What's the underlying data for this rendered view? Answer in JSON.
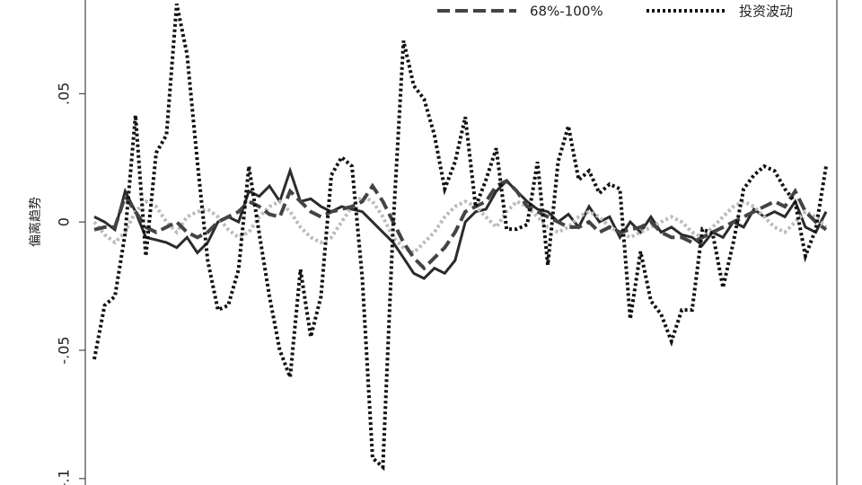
{
  "chart_data": {
    "type": "line",
    "ylabel": "偏离趋势",
    "ylim": [
      -0.1025,
      0.0865
    ],
    "yticks": [
      {
        "value": -0.1,
        "label": "-.1"
      },
      {
        "value": -0.05,
        "label": "-.05"
      },
      0,
      {
        "value": 0.05,
        "label": ".05"
      }
    ],
    "legend": "top",
    "series": [
      {
        "color": "#2b2b2b",
        "dash": "solid",
        "values": [
          0.002,
          0.0,
          -0.003,
          0.012,
          0.004,
          -0.006,
          -0.007,
          -0.008,
          -0.01,
          -0.006,
          -0.012,
          -0.008,
          0.0,
          0.002,
          0.0,
          0.012,
          0.01,
          0.014,
          0.008,
          0.02,
          0.008,
          0.009,
          0.006,
          0.004,
          0.006,
          0.005,
          0.004,
          0.0,
          -0.004,
          -0.008,
          -0.014,
          -0.02,
          -0.022,
          -0.018,
          -0.02,
          -0.015,
          0.0,
          0.004,
          0.005,
          0.012,
          0.016,
          0.012,
          0.008,
          0.005,
          0.004,
          0.0,
          0.003,
          -0.002,
          0.006,
          0.0,
          0.002,
          -0.006,
          0.0,
          -0.004,
          0.002,
          -0.004,
          -0.002,
          -0.005,
          -0.006,
          -0.009,
          -0.004,
          -0.006,
          0.0,
          -0.002,
          0.005,
          0.002,
          0.004,
          0.002,
          0.008,
          -0.002,
          -0.004,
          0.004
        ]
      },
      {
        "color": "#bbbbbb",
        "dash": "dotted",
        "values": [
          0.0,
          -0.005,
          -0.008,
          -0.004,
          0.004,
          0.008,
          0.006,
          0.0,
          -0.004,
          0.002,
          0.004,
          0.005,
          0.002,
          -0.003,
          -0.006,
          -0.004,
          0.002,
          0.006,
          0.008,
          0.004,
          -0.002,
          -0.006,
          -0.008,
          -0.006,
          0.0,
          0.006,
          0.01,
          0.008,
          0.002,
          -0.006,
          -0.01,
          -0.012,
          -0.008,
          -0.004,
          0.002,
          0.006,
          0.008,
          0.006,
          0.002,
          -0.002,
          0.004,
          0.008,
          0.006,
          0.002,
          -0.002,
          -0.004,
          -0.002,
          0.002,
          0.004,
          0.002,
          -0.002,
          -0.004,
          -0.006,
          -0.004,
          -0.002,
          0.0,
          0.002,
          0.0,
          -0.004,
          -0.006,
          -0.002,
          0.002,
          0.006,
          0.008,
          0.006,
          0.002,
          -0.002,
          -0.004,
          0.0,
          0.004,
          0.002,
          -0.002
        ]
      },
      {
        "name": "68%-100%",
        "color": "#444444",
        "dash": "dashed",
        "values": [
          -0.003,
          -0.002,
          -0.002,
          0.01,
          0.004,
          -0.002,
          -0.004,
          -0.002,
          0.0,
          -0.004,
          -0.006,
          -0.004,
          0.0,
          0.002,
          0.004,
          0.008,
          0.006,
          0.003,
          0.002,
          0.012,
          0.008,
          0.004,
          0.002,
          0.004,
          0.005,
          0.006,
          0.008,
          0.014,
          0.008,
          0.0,
          -0.008,
          -0.014,
          -0.018,
          -0.014,
          -0.01,
          -0.004,
          0.004,
          0.006,
          0.008,
          0.014,
          0.016,
          0.012,
          0.006,
          0.004,
          0.002,
          0.0,
          -0.002,
          -0.002,
          0.0,
          -0.004,
          -0.002,
          -0.004,
          -0.003,
          -0.002,
          0.0,
          -0.004,
          -0.006,
          -0.006,
          -0.008,
          -0.006,
          -0.004,
          -0.002,
          0.0,
          0.002,
          0.004,
          0.006,
          0.008,
          0.006,
          0.012,
          0.004,
          0.0,
          -0.003
        ]
      },
      {
        "name": "投资波动",
        "color": "#111111",
        "dash": "dotted",
        "values": [
          -0.0535,
          -0.0325,
          -0.029,
          -0.0045,
          0.0416,
          -0.0133,
          0.0269,
          0.0339,
          0.085,
          0.0654,
          0.0234,
          -0.015,
          -0.0343,
          -0.0325,
          -0.0185,
          0.0217,
          -0.0045,
          -0.029,
          -0.05,
          -0.0605,
          -0.0185,
          -0.0448,
          -0.029,
          0.0182,
          0.0252,
          0.0217,
          -0.022,
          -0.092,
          -0.0955,
          -0.001,
          0.0706,
          0.0531,
          0.0479,
          0.0339,
          0.0129,
          0.0234,
          0.0409,
          0.0059,
          0.0164,
          0.0287,
          -0.0028,
          -0.0028,
          -0.001,
          0.0234,
          -0.0168,
          0.0234,
          0.0374,
          0.0164,
          0.0199,
          0.0112,
          0.0147,
          0.0129,
          -0.0378,
          -0.0115,
          -0.0308,
          -0.036,
          -0.0465,
          -0.0343,
          -0.0343,
          -0.0028,
          -0.0045,
          -0.0255,
          -0.008,
          0.0129,
          0.0182,
          0.0217,
          0.0199,
          0.0129,
          0.0077,
          -0.0133,
          -0.0028,
          0.0217
        ]
      }
    ]
  }
}
